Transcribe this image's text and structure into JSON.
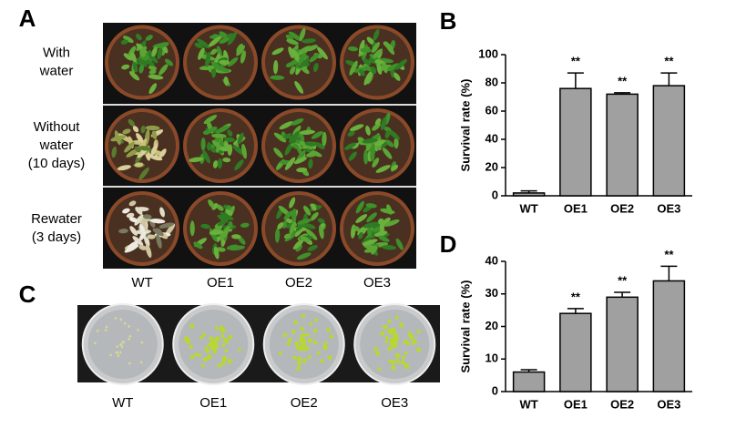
{
  "panel_a": {
    "label": "A",
    "rows": [
      [
        "With",
        "water"
      ],
      [
        "Without",
        "water",
        "(10 days)"
      ],
      [
        "Rewater",
        "(3 days)"
      ]
    ],
    "columns": [
      "WT",
      "OE1",
      "OE2",
      "OE3"
    ]
  },
  "panel_c": {
    "label": "C",
    "columns": [
      "WT",
      "OE1",
      "OE2",
      "OE3"
    ]
  },
  "chart_data": [
    {
      "panel_label": "B",
      "type": "bar",
      "y_label": "Survival rate (%)",
      "categories": [
        "WT",
        "OE1",
        "OE2",
        "OE3"
      ],
      "values": [
        2,
        76,
        72,
        78
      ],
      "errors": [
        1.5,
        11,
        1,
        9
      ],
      "annotations": [
        null,
        "**",
        "**",
        "**"
      ],
      "color": "#a0a0a0",
      "ylim": [
        0,
        100
      ],
      "yticks": [
        0,
        20,
        40,
        60,
        80,
        100
      ]
    },
    {
      "panel_label": "D",
      "type": "bar",
      "y_label": "Survival rate (%)",
      "categories": [
        "WT",
        "OE1",
        "OE2",
        "OE3"
      ],
      "values": [
        6,
        24,
        29,
        34
      ],
      "errors": [
        0.7,
        1.5,
        1.5,
        4.5
      ],
      "annotations": [
        null,
        "**",
        "**",
        "**"
      ],
      "color": "#a0a0a0",
      "ylim": [
        0,
        40
      ],
      "yticks": [
        0,
        10,
        20,
        30,
        40
      ]
    }
  ]
}
